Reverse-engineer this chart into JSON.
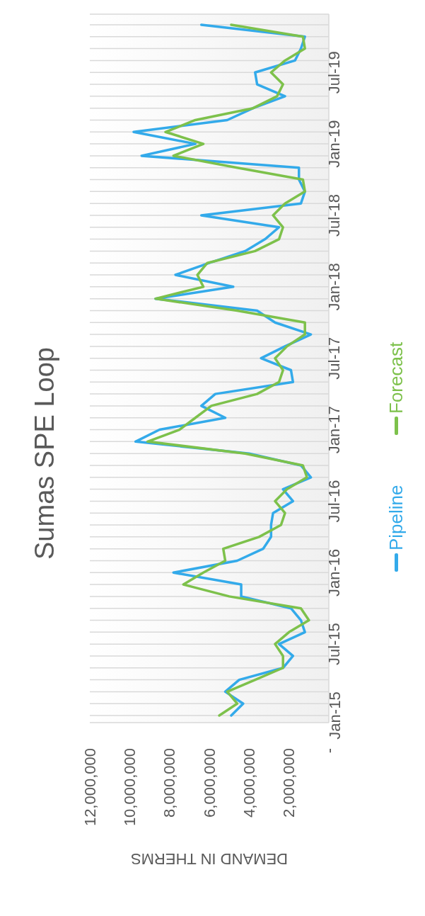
{
  "chart_data": {
    "type": "line",
    "orientation": "horizontal",
    "title": "Sumas SPE Loop",
    "xlabel": "DEMAND IN THERMS",
    "categories": [
      null,
      null,
      null,
      null,
      "Jul-19",
      null,
      null,
      null,
      null,
      null,
      "Jan-19",
      null,
      null,
      null,
      null,
      null,
      "Jul-18",
      null,
      null,
      null,
      null,
      null,
      "Jan-18",
      null,
      null,
      null,
      null,
      null,
      "Jul-17",
      null,
      null,
      null,
      null,
      null,
      "Jan-17",
      null,
      null,
      null,
      null,
      null,
      "Jul-16",
      null,
      null,
      null,
      null,
      null,
      "Jan-16",
      null,
      null,
      null,
      null,
      null,
      "Jul-15",
      null,
      null,
      null,
      null,
      null,
      "Jan-15"
    ],
    "series": [
      {
        "name": "Pipeline",
        "color": "#33aaea",
        "values": [
          6400000,
          1200000,
          1400000,
          1700000,
          3700000,
          3600000,
          2200000,
          3800000,
          5100000,
          9800000,
          6700000,
          9400000,
          1500000,
          1500000,
          1200000,
          1400000,
          6400000,
          2500000,
          3200000,
          4200000,
          6000000,
          7700000,
          4800000,
          8700000,
          3600000,
          2700000,
          900000,
          2200000,
          3400000,
          1900000,
          1800000,
          5700000,
          6400000,
          5200000,
          8500000,
          9700000,
          4000000,
          1400000,
          900000,
          2300000,
          1800000,
          2800000,
          2900000,
          2900000,
          3300000,
          4600000,
          7800000,
          4400000,
          4400000,
          1900000,
          1400000,
          1200000,
          2500000,
          1800000,
          2300000,
          4500000,
          5200000,
          4300000,
          4900000
        ]
      },
      {
        "name": "Forecast",
        "color": "#7dc14b",
        "values": [
          4900000,
          1300000,
          1200000,
          2200000,
          2900000,
          2300000,
          2600000,
          3800000,
          6700000,
          8200000,
          6300000,
          7800000,
          4600000,
          1300000,
          1200000,
          2200000,
          2800000,
          2300000,
          2500000,
          3700000,
          6100000,
          6600000,
          6300000,
          8700000,
          4600000,
          1200000,
          1200000,
          2100000,
          2700000,
          2300000,
          2500000,
          3600000,
          5900000,
          6700000,
          7500000,
          9100000,
          4200000,
          1300000,
          1100000,
          2100000,
          2700000,
          2200000,
          2400000,
          3500000,
          5300000,
          5200000,
          6300000,
          7300000,
          5000000,
          1400000,
          1000000,
          2000000,
          2700000,
          2300000,
          2300000,
          3700000,
          5100000,
          4600000,
          5500000
        ]
      }
    ],
    "xlim": [
      12000000,
      0
    ],
    "xticks": [
      {
        "value": 12000000,
        "label": "12,000,000"
      },
      {
        "value": 10000000,
        "label": "10,000,000"
      },
      {
        "value": 8000000,
        "label": "8,000,000"
      },
      {
        "value": 6000000,
        "label": "6,000,000"
      },
      {
        "value": 4000000,
        "label": "4,000,000"
      },
      {
        "value": 2000000,
        "label": "2,000,000"
      },
      {
        "value": 0,
        "label": "-"
      }
    ],
    "grid": "y",
    "legend": "right",
    "marker": "none",
    "line_style": "solid"
  }
}
